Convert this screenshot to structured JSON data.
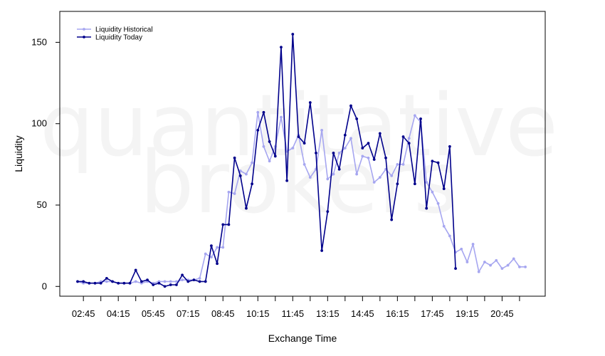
{
  "watermark": {
    "line1": "quantitative",
    "line2": "brokers"
  },
  "chart_data": {
    "type": "line",
    "xlabel": "Exchange Time",
    "ylabel": "Liquidity",
    "x_tick_labels": [
      "02:45",
      "04:15",
      "05:45",
      "07:15",
      "08:45",
      "10:15",
      "11:45",
      "13:15",
      "14:45",
      "16:15",
      "17:45",
      "19:15",
      "20:45"
    ],
    "y_ticks": [
      0,
      50,
      100,
      150
    ],
    "y_range": [
      -6,
      169
    ],
    "bins": 78,
    "grid": false,
    "legend_position": "top-left",
    "series": [
      {
        "name": "Liquidity Historical",
        "color": "#a6a6f0",
        "values": [
          3,
          2,
          2,
          2,
          3,
          3,
          3,
          2,
          2,
          2,
          3,
          2,
          3,
          2,
          3,
          3,
          3,
          3,
          4,
          4,
          4,
          5,
          20,
          18,
          24,
          24,
          58,
          57,
          71,
          69,
          76,
          107,
          86,
          77,
          86,
          104,
          83,
          85,
          93,
          75,
          67,
          72,
          96,
          66,
          69,
          82,
          85,
          91,
          69,
          80,
          79,
          64,
          67,
          72,
          68,
          75,
          75,
          91,
          105,
          101,
          64,
          58,
          51,
          37,
          31,
          21,
          23,
          15,
          26,
          9,
          15,
          13,
          16,
          11,
          13,
          17,
          12,
          12
        ]
      },
      {
        "name": "Liquidity Today",
        "color": "#00008b",
        "values": [
          3,
          3,
          2,
          2,
          2,
          5,
          3,
          2,
          2,
          2,
          10,
          3,
          4,
          1,
          2,
          0,
          1,
          1,
          7,
          3,
          4,
          3,
          3,
          25,
          14,
          38,
          38,
          79,
          68,
          48,
          63,
          96,
          107,
          89,
          80,
          147,
          65,
          155,
          92,
          88,
          113,
          82,
          22,
          46,
          82,
          72,
          93,
          111,
          103,
          85,
          88,
          78,
          94,
          79,
          41,
          63,
          92,
          88,
          63,
          103,
          48,
          77,
          76,
          60,
          86,
          11
        ]
      }
    ]
  }
}
